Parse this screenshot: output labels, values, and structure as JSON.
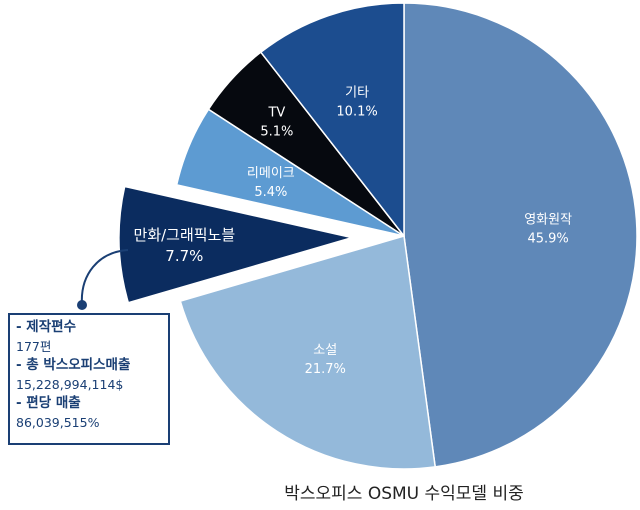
{
  "chart_data": {
    "type": "pie",
    "title": "박스오피스 OSMU 수익모델 비중",
    "slices": [
      {
        "label": "영화원작",
        "value": 45.9,
        "value_label": "45.9%",
        "color": "#5f88b8"
      },
      {
        "label": "소설",
        "value": 21.7,
        "value_label": "21.7%",
        "color": "#94b9da"
      },
      {
        "label": "만화/그래픽노블",
        "value": 7.7,
        "value_label": "7.7%",
        "color": "#0b2c5f",
        "exploded": true
      },
      {
        "label": "리메이크",
        "value": 5.4,
        "value_label": "5.4%",
        "color": "#5d9bd2"
      },
      {
        "label": "TV",
        "value": 5.1,
        "value_label": "5.1%",
        "color": "#06090f"
      },
      {
        "label": "기타",
        "value": 10.1,
        "value_label": "10.1%",
        "color": "#1c4d8f"
      }
    ]
  },
  "info_box": {
    "items": [
      {
        "heading": "- 제작편수",
        "value": "177편"
      },
      {
        "heading": "- 총 박스오피스매출",
        "value": "15,228,994,114$"
      },
      {
        "heading": "- 편당 매출",
        "value": "86,039,515%"
      }
    ]
  }
}
